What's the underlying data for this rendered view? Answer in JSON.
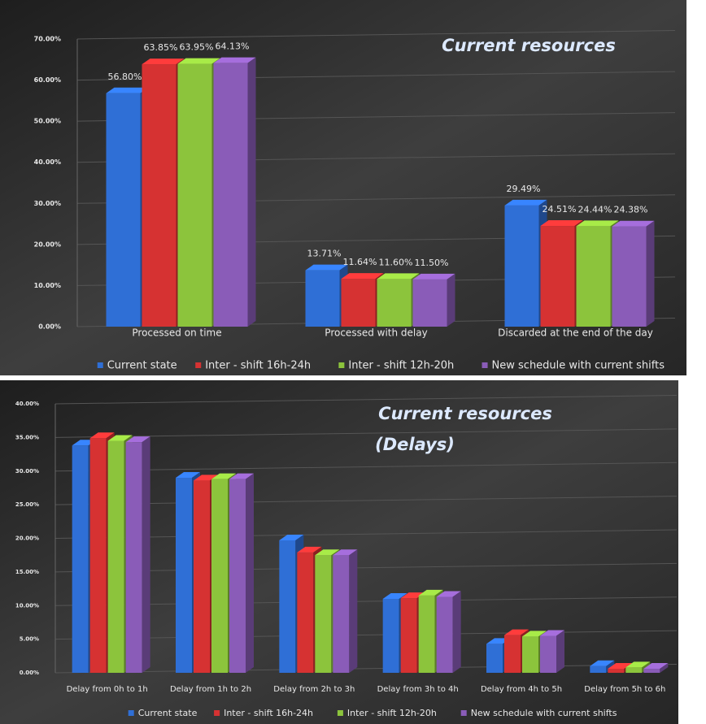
{
  "chart_data": [
    {
      "type": "bar3d",
      "title": "Current resources",
      "categories": [
        "Processed on time",
        "Processed with delay",
        "Discarded at the end of the day"
      ],
      "series": [
        {
          "name": "Current state",
          "color": "#2f6fd6",
          "values": [
            56.8,
            13.71,
            29.49
          ],
          "value_labels": [
            "56.80%",
            "13.71%",
            "29.49%"
          ]
        },
        {
          "name": "Inter - shift 16h-24h",
          "color": "#d63232",
          "values": [
            63.85,
            11.64,
            24.51
          ],
          "value_labels": [
            "63.85%",
            "11.64%",
            "24.51%"
          ]
        },
        {
          "name": "Inter - shift 12h-20h",
          "color": "#8cc43c",
          "values": [
            63.95,
            11.6,
            24.44
          ],
          "value_labels": [
            "63.95%",
            "11.60%",
            "24.44%"
          ]
        },
        {
          "name": "New schedule with current shifts",
          "color": "#8a5cb8",
          "values": [
            64.13,
            11.5,
            24.38
          ],
          "value_labels": [
            "64.13%",
            "11.50%",
            "24.38%"
          ]
        }
      ],
      "ylim": [
        0,
        70
      ],
      "yticks": [
        {
          "value": 0,
          "label": "0.00%"
        },
        {
          "value": 10,
          "label": "10.00%"
        },
        {
          "value": 20,
          "label": "20.00%"
        },
        {
          "value": 30,
          "label": "30.00%"
        },
        {
          "value": 40,
          "label": "40.00%"
        },
        {
          "value": 50,
          "label": "50.00%"
        },
        {
          "value": 60,
          "label": "60.00%"
        },
        {
          "value": 70,
          "label": "70.00%"
        }
      ],
      "legend": "bottom"
    },
    {
      "type": "bar3d",
      "title": "Current resources",
      "subtitle": "(Delays)",
      "categories": [
        "Delay from 0h to 1h",
        "Delay from 1h to 2h",
        "Delay from 2h to 3h",
        "Delay from 3h to 4h",
        "Delay from 4h to 5h",
        "Delay from 5h to 6h"
      ],
      "series": [
        {
          "name": "Current state",
          "color": "#2f6fd6",
          "values": [
            33.8,
            29.0,
            19.7,
            11.0,
            4.3,
            1.0
          ]
        },
        {
          "name": "Inter - shift 16h-24h",
          "color": "#d63232",
          "values": [
            34.9,
            28.6,
            17.9,
            11.1,
            5.6,
            0.6
          ]
        },
        {
          "name": "Inter - shift 12h-20h",
          "color": "#8cc43c",
          "values": [
            34.5,
            28.8,
            17.5,
            11.5,
            5.4,
            0.8
          ]
        },
        {
          "name": "New schedule with current shifts",
          "color": "#8a5cb8",
          "values": [
            34.3,
            28.8,
            17.5,
            11.3,
            5.5,
            0.6
          ]
        }
      ],
      "ylim": [
        0,
        40
      ],
      "yticks": [
        {
          "value": 0,
          "label": "0.00%"
        },
        {
          "value": 5,
          "label": "5.00%"
        },
        {
          "value": 10,
          "label": "10.00%"
        },
        {
          "value": 15,
          "label": "15.00%"
        },
        {
          "value": 20,
          "label": "20.00%"
        },
        {
          "value": 25,
          "label": "25.00%"
        },
        {
          "value": 30,
          "label": "30.00%"
        },
        {
          "value": 35,
          "label": "35.00%"
        },
        {
          "value": 40,
          "label": "40.00%"
        }
      ],
      "legend": "bottom"
    }
  ]
}
